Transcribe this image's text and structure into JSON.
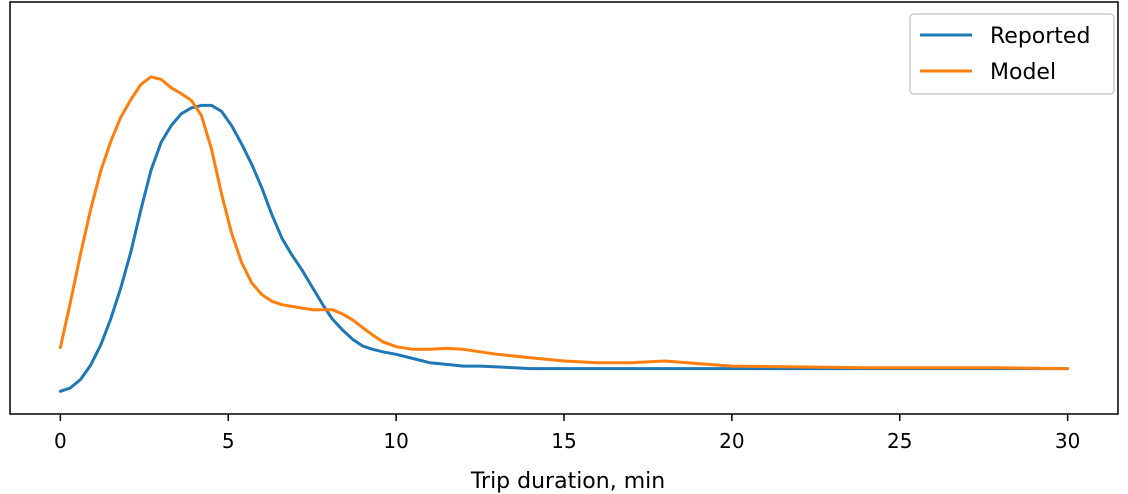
{
  "chart_data": {
    "type": "line",
    "title": "",
    "xlabel": "Trip duration, min",
    "ylabel": "",
    "xlim": [
      -1.5,
      31.5
    ],
    "ylim": [
      -0.0025,
      0.0465
    ],
    "xticks": [
      0,
      5,
      10,
      15,
      20,
      25,
      30
    ],
    "xtick_labels": [
      "0",
      "5",
      "10",
      "15",
      "20",
      "25",
      "30"
    ],
    "yticks_visible": false,
    "grid": false,
    "legend_position": "top-right",
    "series": [
      {
        "name": "Reported",
        "color": "#1f77b4",
        "x": [
          0,
          0.3,
          0.6,
          0.9,
          1.2,
          1.5,
          1.8,
          2.1,
          2.4,
          2.7,
          3.0,
          3.3,
          3.6,
          3.9,
          4.2,
          4.5,
          4.8,
          5.1,
          5.4,
          5.7,
          6.0,
          6.3,
          6.6,
          6.9,
          7.2,
          7.5,
          7.8,
          8.1,
          8.4,
          8.7,
          9.0,
          9.3,
          9.6,
          10.0,
          10.5,
          11.0,
          11.5,
          12.0,
          12.5,
          13.0,
          13.5,
          14.0,
          15.0,
          16.0,
          17.0,
          18.0,
          19.0,
          20.0,
          22.0,
          24.0,
          26.0,
          28.0,
          30.0
        ],
        "y": [
          0.0002,
          0.0006,
          0.0016,
          0.0033,
          0.0057,
          0.0088,
          0.0125,
          0.0168,
          0.0218,
          0.0265,
          0.0298,
          0.0318,
          0.0332,
          0.0339,
          0.0342,
          0.0342,
          0.0335,
          0.0318,
          0.0296,
          0.0272,
          0.0244,
          0.0212,
          0.0184,
          0.0164,
          0.0146,
          0.0126,
          0.0106,
          0.0088,
          0.0075,
          0.0064,
          0.0056,
          0.0052,
          0.0049,
          0.0046,
          0.0041,
          0.0036,
          0.0034,
          0.0032,
          0.0032,
          0.0031,
          0.003,
          0.0029,
          0.0029,
          0.0029,
          0.0029,
          0.0029,
          0.0029,
          0.0029,
          0.0029,
          0.0029,
          0.0029,
          0.0029,
          0.0029
        ]
      },
      {
        "name": "Model",
        "color": "#ff7f0e",
        "x": [
          0,
          0.3,
          0.6,
          0.9,
          1.2,
          1.5,
          1.8,
          2.1,
          2.4,
          2.7,
          3.0,
          3.3,
          3.6,
          3.9,
          4.2,
          4.5,
          4.8,
          5.1,
          5.4,
          5.7,
          6.0,
          6.3,
          6.6,
          6.9,
          7.2,
          7.5,
          7.8,
          8.1,
          8.4,
          8.7,
          9.0,
          9.3,
          9.6,
          10.0,
          10.5,
          11.0,
          11.5,
          12.0,
          12.5,
          13.0,
          14.0,
          15.0,
          16.0,
          17.0,
          18.0,
          19.0,
          20.0,
          22.0,
          24.0,
          26.0,
          28.0,
          30.0
        ],
        "y": [
          0.0054,
          0.0108,
          0.0165,
          0.0218,
          0.0264,
          0.0299,
          0.0328,
          0.0349,
          0.0367,
          0.0376,
          0.0373,
          0.0363,
          0.0356,
          0.0348,
          0.033,
          0.029,
          0.0237,
          0.019,
          0.0155,
          0.0131,
          0.0117,
          0.0109,
          0.0105,
          0.0103,
          0.0101,
          0.0099,
          0.0099,
          0.0099,
          0.0094,
          0.0087,
          0.0078,
          0.0069,
          0.0061,
          0.0055,
          0.0052,
          0.0052,
          0.0053,
          0.0052,
          0.0049,
          0.0046,
          0.0042,
          0.0038,
          0.0036,
          0.0036,
          0.0038,
          0.0035,
          0.0032,
          0.0031,
          0.003,
          0.003,
          0.003,
          0.0029
        ]
      }
    ]
  }
}
